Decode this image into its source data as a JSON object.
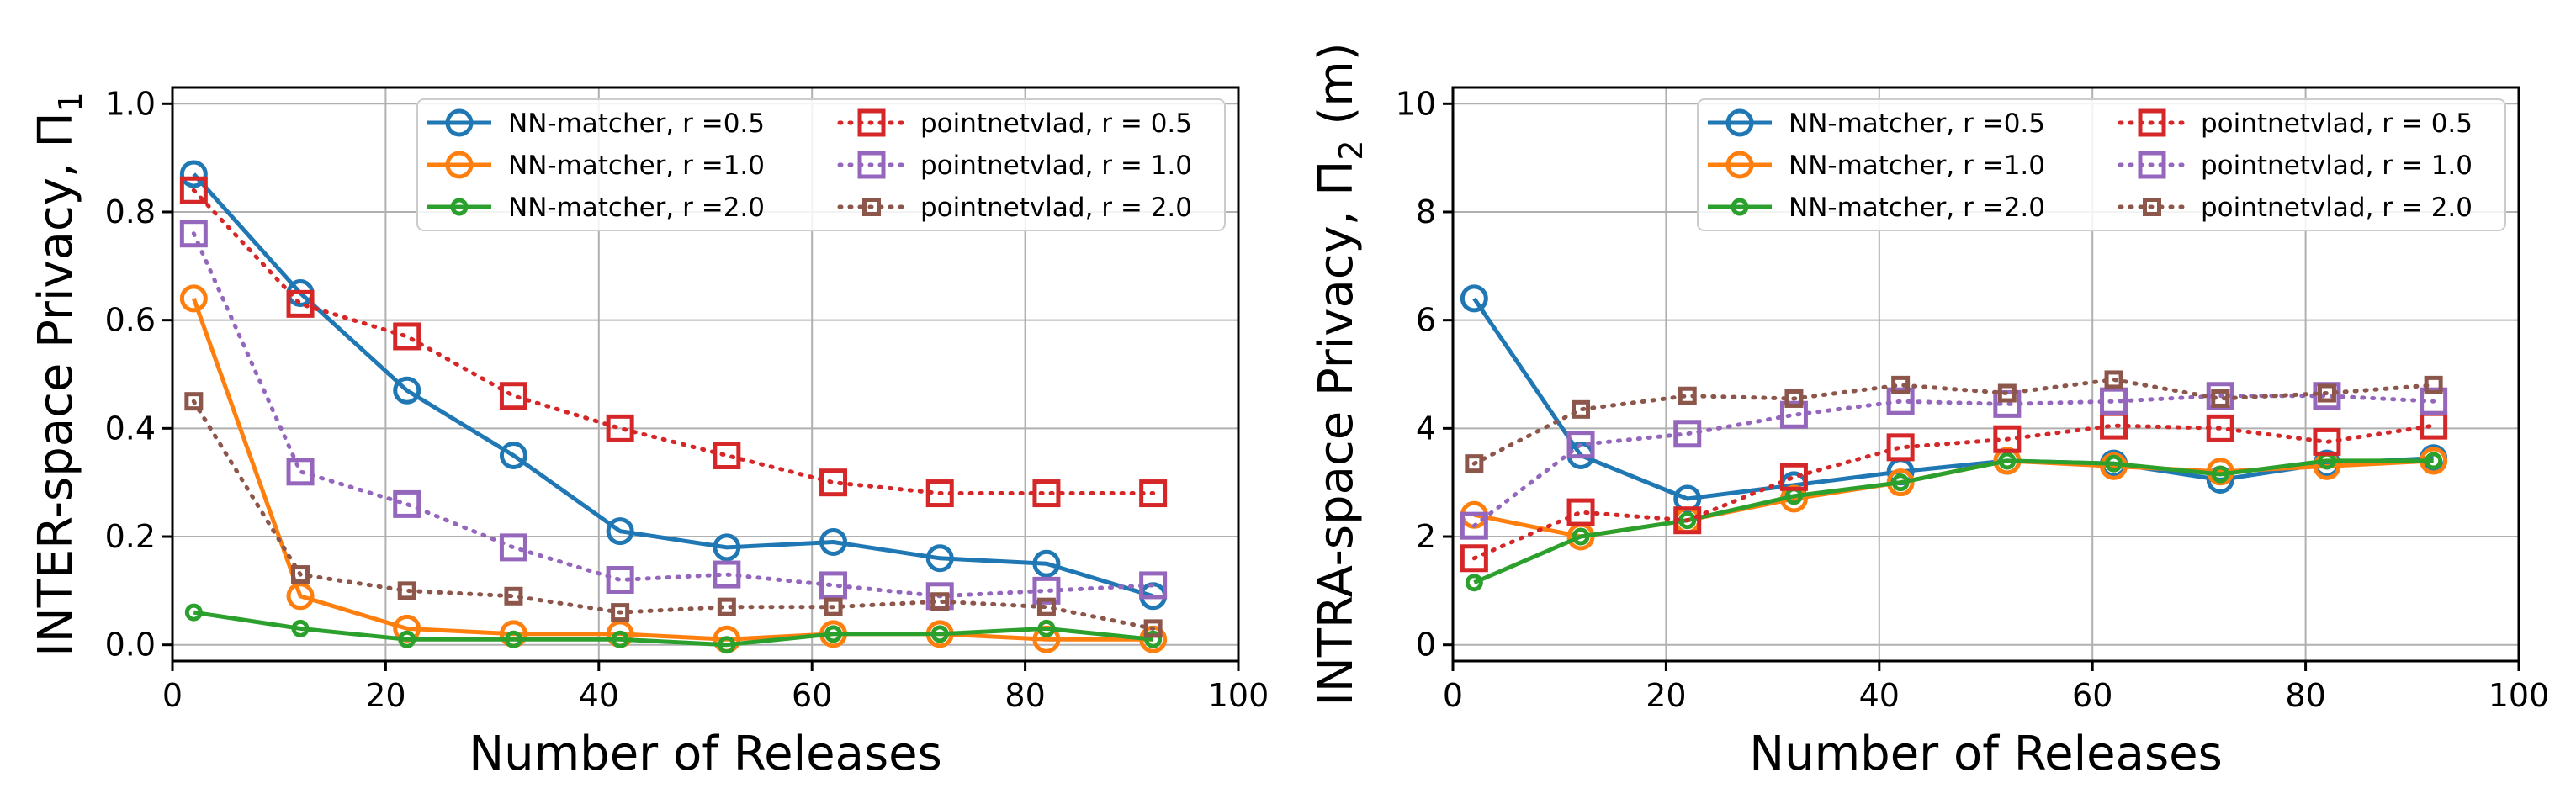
{
  "chart_data": [
    {
      "type": "line",
      "xlabel": "Number of Releases",
      "ylabel": "INTER-space Privacy, Π",
      "ylabel_sub": "1",
      "xlim": [
        0,
        100
      ],
      "ylim": [
        -0.03,
        1.03
      ],
      "xticks": [
        0,
        20,
        40,
        60,
        80,
        100
      ],
      "xtick_labels": [
        "0",
        "20",
        "40",
        "60",
        "80",
        "100"
      ],
      "yticks": [
        0.0,
        0.2,
        0.4,
        0.6,
        0.8,
        1.0
      ],
      "ytick_labels": [
        "0.0",
        "0.2",
        "0.4",
        "0.6",
        "0.8",
        "1.0"
      ],
      "grid": true,
      "legend": "top-right",
      "x": [
        2,
        12,
        22,
        32,
        42,
        52,
        62,
        72,
        82,
        92
      ],
      "series": [
        {
          "name": "NN-matcher, r =0.5",
          "color": "#1f77b4",
          "marker": "circle-large",
          "linestyle": "solid",
          "values": [
            0.87,
            0.65,
            0.47,
            0.35,
            0.21,
            0.18,
            0.19,
            0.16,
            0.15,
            0.09
          ]
        },
        {
          "name": "NN-matcher, r =1.0",
          "color": "#ff7f0e",
          "marker": "circle-large",
          "linestyle": "solid",
          "values": [
            0.64,
            0.09,
            0.03,
            0.02,
            0.02,
            0.01,
            0.02,
            0.02,
            0.01,
            0.01
          ]
        },
        {
          "name": "NN-matcher, r =2.0",
          "color": "#2ca02c",
          "marker": "circle-small",
          "linestyle": "solid",
          "values": [
            0.06,
            0.03,
            0.01,
            0.01,
            0.01,
            0.0,
            0.02,
            0.02,
            0.03,
            0.01
          ]
        },
        {
          "name": "pointnetvlad, r = 0.5",
          "color": "#d62728",
          "marker": "square-large",
          "linestyle": "dotted",
          "values": [
            0.84,
            0.63,
            0.57,
            0.46,
            0.4,
            0.35,
            0.3,
            0.28,
            0.28,
            0.28
          ]
        },
        {
          "name": "pointnetvlad, r = 1.0",
          "color": "#9467bd",
          "marker": "square-large",
          "linestyle": "dotted",
          "values": [
            0.76,
            0.32,
            0.26,
            0.18,
            0.12,
            0.13,
            0.11,
            0.09,
            0.1,
            0.11
          ]
        },
        {
          "name": "pointnetvlad, r = 2.0",
          "color": "#8c564b",
          "marker": "square-small",
          "linestyle": "dotted",
          "values": [
            0.45,
            0.13,
            0.1,
            0.09,
            0.06,
            0.07,
            0.07,
            0.08,
            0.07,
            0.03
          ]
        }
      ]
    },
    {
      "type": "line",
      "xlabel": "Number of Releases",
      "ylabel": "INTRA-space Privacy, Π",
      "ylabel_sub": "2",
      "ylabel_suffix": " (m)",
      "xlim": [
        0,
        100
      ],
      "ylim": [
        -0.3,
        10.3
      ],
      "xticks": [
        0,
        20,
        40,
        60,
        80,
        100
      ],
      "xtick_labels": [
        "0",
        "20",
        "40",
        "60",
        "80",
        "100"
      ],
      "yticks": [
        0,
        2,
        4,
        6,
        8,
        10
      ],
      "ytick_labels": [
        "0",
        "2",
        "4",
        "6",
        "8",
        "10"
      ],
      "grid": true,
      "legend": "top-right",
      "x": [
        2,
        12,
        22,
        32,
        42,
        52,
        62,
        72,
        82,
        92
      ],
      "series": [
        {
          "name": "NN-matcher, r =0.5",
          "color": "#1f77b4",
          "marker": "circle-large",
          "linestyle": "solid",
          "values": [
            6.4,
            3.5,
            2.7,
            2.95,
            3.2,
            3.4,
            3.35,
            3.05,
            3.35,
            3.45
          ]
        },
        {
          "name": "NN-matcher, r =1.0",
          "color": "#ff7f0e",
          "marker": "circle-large",
          "linestyle": "solid",
          "values": [
            2.4,
            2.0,
            2.3,
            2.7,
            3.0,
            3.4,
            3.3,
            3.2,
            3.3,
            3.4
          ]
        },
        {
          "name": "NN-matcher, r =2.0",
          "color": "#2ca02c",
          "marker": "circle-small",
          "linestyle": "solid",
          "values": [
            1.15,
            2.0,
            2.3,
            2.75,
            3.0,
            3.4,
            3.35,
            3.15,
            3.4,
            3.4
          ]
        },
        {
          "name": "pointnetvlad, r = 0.5",
          "color": "#d62728",
          "marker": "square-large",
          "linestyle": "dotted",
          "values": [
            1.6,
            2.45,
            2.3,
            3.1,
            3.65,
            3.8,
            4.05,
            4.0,
            3.75,
            4.05
          ]
        },
        {
          "name": "pointnetvlad, r = 1.0",
          "color": "#9467bd",
          "marker": "square-large",
          "linestyle": "dotted",
          "values": [
            2.2,
            3.7,
            3.9,
            4.25,
            4.5,
            4.45,
            4.5,
            4.6,
            4.6,
            4.5
          ]
        },
        {
          "name": "pointnetvlad, r = 2.0",
          "color": "#8c564b",
          "marker": "square-small",
          "linestyle": "dotted",
          "values": [
            3.35,
            4.35,
            4.6,
            4.55,
            4.8,
            4.65,
            4.9,
            4.55,
            4.65,
            4.8
          ]
        }
      ]
    }
  ]
}
